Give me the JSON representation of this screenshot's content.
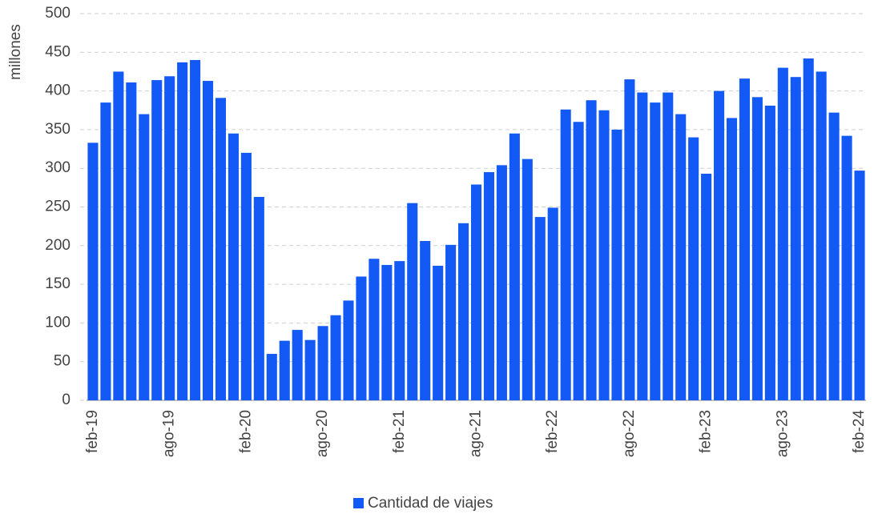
{
  "chart_data": {
    "type": "bar",
    "y_label": "millones",
    "categories": [
      "feb-19",
      null,
      null,
      null,
      null,
      null,
      "ago-19",
      null,
      null,
      null,
      null,
      null,
      "feb-20",
      null,
      null,
      null,
      null,
      null,
      "ago-20",
      null,
      null,
      null,
      null,
      null,
      "feb-21",
      null,
      null,
      null,
      null,
      null,
      "ago-21",
      null,
      null,
      null,
      null,
      null,
      "feb-22",
      null,
      null,
      null,
      null,
      null,
      "ago-22",
      null,
      null,
      null,
      null,
      null,
      "feb-23",
      null,
      null,
      null,
      null,
      null,
      "ago-23",
      null,
      null,
      null,
      null,
      null,
      "feb-24"
    ],
    "series": [
      {
        "name": "Cantidad de viajes",
        "color": "#1259f5",
        "values": [
          333,
          385,
          425,
          411,
          370,
          414,
          419,
          437,
          440,
          413,
          391,
          345,
          320,
          263,
          60,
          77,
          91,
          78,
          96,
          110,
          129,
          160,
          183,
          175,
          180,
          255,
          206,
          174,
          201,
          229,
          279,
          295,
          304,
          345,
          312,
          237,
          249,
          376,
          360,
          388,
          375,
          350,
          415,
          398,
          385,
          398,
          370,
          340,
          293,
          400,
          365,
          416,
          392,
          381,
          430,
          418,
          442,
          425,
          372,
          342,
          297
        ]
      }
    ],
    "ylim": [
      0,
      500
    ],
    "yticks": [
      0,
      50,
      100,
      150,
      200,
      250,
      300,
      350,
      400,
      450,
      500
    ],
    "grid": true
  }
}
